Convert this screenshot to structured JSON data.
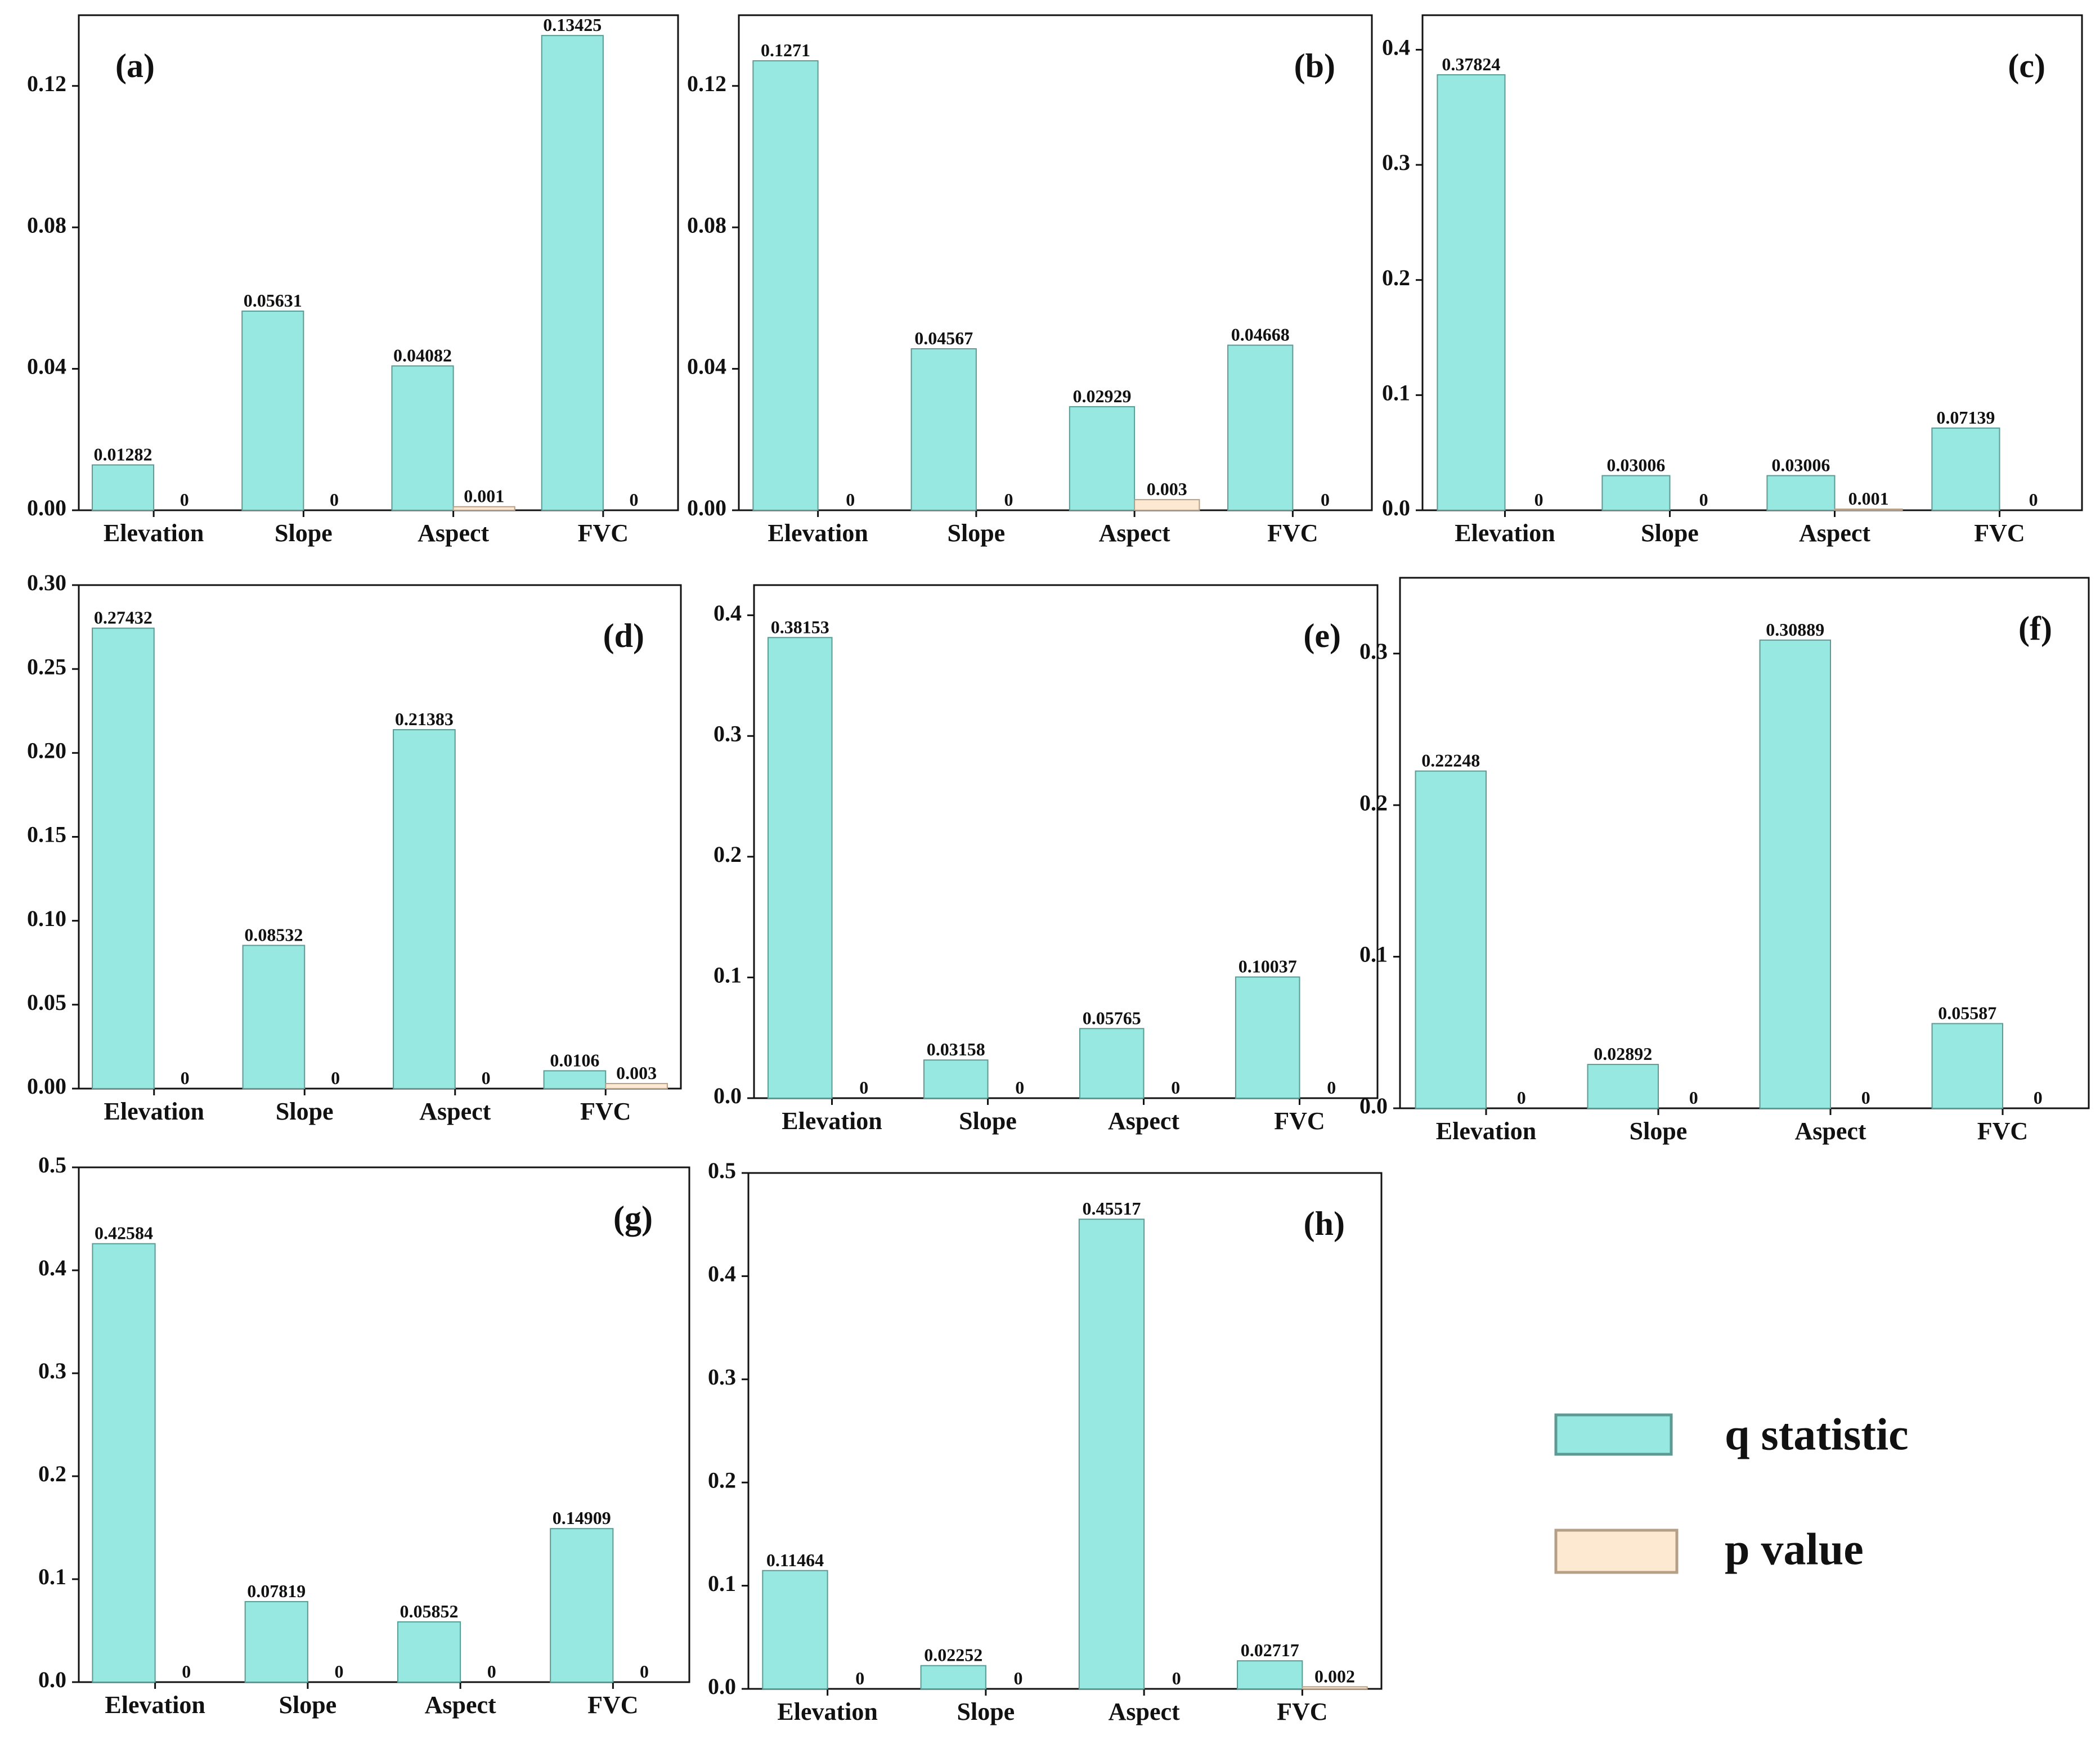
{
  "colors": {
    "q_fill": "#96E8E0",
    "q_stroke": "#5E9A94",
    "p_fill": "#FDE8D2",
    "p_stroke": "#B59F86",
    "axis": "#111111"
  },
  "legend": {
    "q_label": "q statistic",
    "p_label": "p value"
  },
  "chart_data": [
    {
      "type": "bar",
      "panel": "(a)",
      "categories": [
        "Elevation",
        "Slope",
        "Aspect",
        "FVC"
      ],
      "series": [
        {
          "name": "q statistic",
          "values": [
            0.01282,
            0.05631,
            0.04082,
            0.13425
          ],
          "labels": [
            "0.01282",
            "0.05631",
            "0.04082",
            "0.13425"
          ]
        },
        {
          "name": "p value",
          "values": [
            0,
            0,
            0.001,
            0
          ],
          "labels": [
            "0",
            "0",
            "0.001",
            "0"
          ]
        }
      ],
      "yticks": [
        0.0,
        0.04,
        0.08,
        0.12
      ],
      "ytick_labels": [
        "0.00",
        "0.04",
        "0.08",
        "0.12"
      ],
      "ylim": [
        0,
        0.14
      ]
    },
    {
      "type": "bar",
      "panel": "(b)",
      "categories": [
        "Elevation",
        "Slope",
        "Aspect",
        "FVC"
      ],
      "series": [
        {
          "name": "q statistic",
          "values": [
            0.1271,
            0.04567,
            0.02929,
            0.04668
          ],
          "labels": [
            "0.1271",
            "0.04567",
            "0.02929",
            "0.04668"
          ]
        },
        {
          "name": "p value",
          "values": [
            0,
            0,
            0.003,
            0
          ],
          "labels": [
            "0",
            "0",
            "0.003",
            "0"
          ]
        }
      ],
      "yticks": [
        0.0,
        0.04,
        0.08,
        0.12
      ],
      "ytick_labels": [
        "0.00",
        "0.04",
        "0.08",
        "0.12"
      ],
      "ylim": [
        0,
        0.14
      ]
    },
    {
      "type": "bar",
      "panel": "(c)",
      "categories": [
        "Elevation",
        "Slope",
        "Aspect",
        "FVC"
      ],
      "series": [
        {
          "name": "q statistic",
          "values": [
            0.37824,
            0.03006,
            0.03006,
            0.07139
          ],
          "labels": [
            "0.37824",
            "0.03006",
            "0.03006",
            "0.07139"
          ]
        },
        {
          "name": "p value",
          "values": [
            0,
            0,
            0.001,
            0
          ],
          "labels": [
            "0",
            "0",
            "0.001",
            "0"
          ]
        }
      ],
      "yticks": [
        0.0,
        0.1,
        0.2,
        0.3,
        0.4
      ],
      "ytick_labels": [
        "0.0",
        "0.1",
        "0.2",
        "0.3",
        "0.4"
      ],
      "ylim": [
        0,
        0.43
      ]
    },
    {
      "type": "bar",
      "panel": "(d)",
      "categories": [
        "Elevation",
        "Slope",
        "Aspect",
        "FVC"
      ],
      "series": [
        {
          "name": "q statistic",
          "values": [
            0.27432,
            0.08532,
            0.21383,
            0.0106
          ],
          "labels": [
            "0.27432",
            "0.08532",
            "0.21383",
            "0.0106"
          ]
        },
        {
          "name": "p value",
          "values": [
            0,
            0,
            0,
            0.003
          ],
          "labels": [
            "0",
            "0",
            "0",
            "0.003"
          ]
        }
      ],
      "yticks": [
        0.0,
        0.05,
        0.1,
        0.15,
        0.2,
        0.25,
        0.3
      ],
      "ytick_labels": [
        "0.00",
        "0.05",
        "0.10",
        "0.15",
        "0.20",
        "0.25",
        "0.30"
      ],
      "ylim": [
        0,
        0.3
      ]
    },
    {
      "type": "bar",
      "panel": "(e)",
      "categories": [
        "Elevation",
        "Slope",
        "Aspect",
        "FVC"
      ],
      "series": [
        {
          "name": "q statistic",
          "values": [
            0.38153,
            0.03158,
            0.05765,
            0.10037
          ],
          "labels": [
            "0.38153",
            "0.03158",
            "0.05765",
            "0.10037"
          ]
        },
        {
          "name": "p value",
          "values": [
            0,
            0,
            0,
            0
          ],
          "labels": [
            "0",
            "0",
            "0",
            "0"
          ]
        }
      ],
      "yticks": [
        0.0,
        0.1,
        0.2,
        0.3,
        0.4
      ],
      "ytick_labels": [
        "0.0",
        "0.1",
        "0.2",
        "0.3",
        "0.4"
      ],
      "ylim": [
        0,
        0.425
      ]
    },
    {
      "type": "bar",
      "panel": "(f)",
      "categories": [
        "Elevation",
        "Slope",
        "Aspect",
        "FVC"
      ],
      "series": [
        {
          "name": "q statistic",
          "values": [
            0.22248,
            0.02892,
            0.30889,
            0.05587
          ],
          "labels": [
            "0.22248",
            "0.02892",
            "0.30889",
            "0.05587"
          ]
        },
        {
          "name": "p value",
          "values": [
            0,
            0,
            0,
            0
          ],
          "labels": [
            "0",
            "0",
            "0",
            "0"
          ]
        }
      ],
      "yticks": [
        0.0,
        0.1,
        0.2,
        0.3
      ],
      "ytick_labels": [
        "0.0",
        "0.1",
        "0.2",
        "0.3"
      ],
      "ylim": [
        0,
        0.35
      ]
    },
    {
      "type": "bar",
      "panel": "(g)",
      "categories": [
        "Elevation",
        "Slope",
        "Aspect",
        "FVC"
      ],
      "series": [
        {
          "name": "q statistic",
          "values": [
            0.42584,
            0.07819,
            0.05852,
            0.14909
          ],
          "labels": [
            "0.42584",
            "0.07819",
            "0.05852",
            "0.14909"
          ]
        },
        {
          "name": "p value",
          "values": [
            0,
            0,
            0,
            0
          ],
          "labels": [
            "0",
            "0",
            "0",
            "0"
          ]
        }
      ],
      "yticks": [
        0.0,
        0.1,
        0.2,
        0.3,
        0.4,
        0.5
      ],
      "ytick_labels": [
        "0.0",
        "0.1",
        "0.2",
        "0.3",
        "0.4",
        "0.5"
      ],
      "ylim": [
        0,
        0.5
      ]
    },
    {
      "type": "bar",
      "panel": "(h)",
      "categories": [
        "Elevation",
        "Slope",
        "Aspect",
        "FVC"
      ],
      "series": [
        {
          "name": "q statistic",
          "values": [
            0.11464,
            0.02252,
            0.45517,
            0.02717
          ],
          "labels": [
            "0.11464",
            "0.02252",
            "0.45517",
            "0.02717"
          ]
        },
        {
          "name": "p value",
          "values": [
            0,
            0,
            0,
            0.002
          ],
          "labels": [
            "0",
            "0",
            "0",
            "0.002"
          ]
        }
      ],
      "yticks": [
        0.0,
        0.1,
        0.2,
        0.3,
        0.4,
        0.5
      ],
      "ytick_labels": [
        "0.0",
        "0.1",
        "0.2",
        "0.3",
        "0.4",
        "0.5"
      ],
      "ylim": [
        0,
        0.5
      ]
    }
  ]
}
